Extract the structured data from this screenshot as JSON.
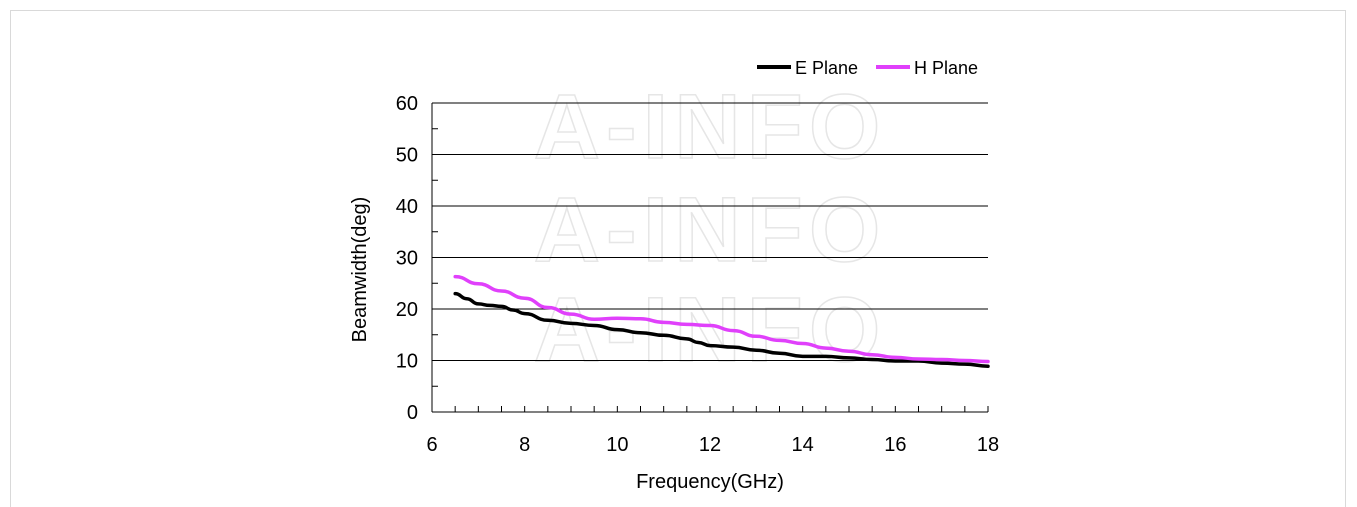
{
  "chart_data": {
    "type": "line",
    "title": "",
    "xlabel": "Frequency(GHz)",
    "ylabel": "Beamwidth(deg)",
    "xlim": [
      6,
      18
    ],
    "ylim": [
      0,
      60
    ],
    "x_ticks": [
      6,
      8,
      10,
      12,
      14,
      16,
      18
    ],
    "y_ticks": [
      0,
      10,
      20,
      30,
      40,
      50,
      60
    ],
    "grid": "horizontal",
    "legend_position": "top-right",
    "watermark": "A-INFO",
    "series": [
      {
        "name": "E Plane",
        "color": "#000000",
        "x": [
          6.5,
          6.75,
          7,
          7.25,
          7.5,
          7.75,
          8,
          8.5,
          9,
          9.5,
          10,
          10.5,
          11,
          11.5,
          11.75,
          12,
          12.5,
          13,
          13.5,
          14,
          14.5,
          15,
          15.5,
          16,
          16.5,
          17,
          17.5,
          18
        ],
        "y": [
          23,
          22,
          21,
          20.7,
          20.5,
          19.8,
          19.1,
          17.8,
          17.2,
          16.8,
          16.0,
          15.4,
          14.9,
          14.2,
          13.5,
          12.9,
          12.6,
          12.0,
          11.4,
          10.8,
          10.8,
          10.5,
          10.2,
          9.9,
          9.9,
          9.5,
          9.3,
          8.9
        ]
      },
      {
        "name": "H Plane",
        "color": "#e040fb",
        "x": [
          6.5,
          7,
          7.5,
          8,
          8.5,
          9,
          9.5,
          10,
          10.5,
          11,
          11.5,
          12,
          12.5,
          13,
          13.5,
          14,
          14.5,
          15,
          15.5,
          16,
          16.5,
          17,
          17.5,
          18
        ],
        "y": [
          26.3,
          24.9,
          23.5,
          22.1,
          20.3,
          19.0,
          18.0,
          18.2,
          18.1,
          17.4,
          17.0,
          16.8,
          15.8,
          14.7,
          13.9,
          13.3,
          12.4,
          11.8,
          11.1,
          10.6,
          10.3,
          10.2,
          10.0,
          9.8
        ]
      }
    ]
  }
}
